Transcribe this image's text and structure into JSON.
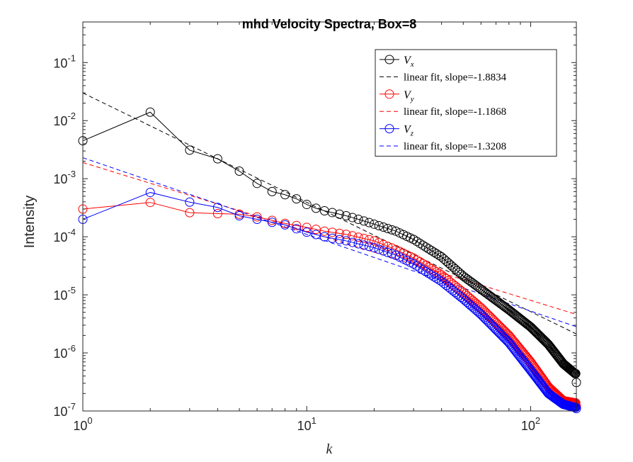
{
  "chart_data": {
    "type": "line",
    "title": "mhd Velocity Spectra, Box=8",
    "xlabel": "k",
    "ylabel": "Intensity",
    "xscale": "log",
    "yscale": "log",
    "xlim": [
      1,
      160
    ],
    "ylim": [
      1e-07,
      0.5
    ],
    "x_ticks": [
      {
        "value": 1,
        "base": "10",
        "exp": "0"
      },
      {
        "value": 10,
        "base": "10",
        "exp": "1"
      },
      {
        "value": 100,
        "base": "10",
        "exp": "2"
      }
    ],
    "y_ticks": [
      {
        "value": 1e-07,
        "base": "10",
        "exp": "-7"
      },
      {
        "value": 1e-06,
        "base": "10",
        "exp": "-6"
      },
      {
        "value": 1e-05,
        "base": "10",
        "exp": "-5"
      },
      {
        "value": 0.0001,
        "base": "10",
        "exp": "-4"
      },
      {
        "value": 0.001,
        "base": "10",
        "exp": "-3"
      },
      {
        "value": 0.01,
        "base": "10",
        "exp": "-2"
      },
      {
        "value": 0.1,
        "base": "10",
        "exp": "-1"
      }
    ],
    "grid": false,
    "legend_position": "top-right",
    "k_max": 160,
    "series": [
      {
        "name": "V_x",
        "legend_base": "V",
        "legend_sub": "x",
        "color": "#000000",
        "marker": "circle",
        "anchors": [
          [
            1,
            0.0045
          ],
          [
            2,
            0.014
          ],
          [
            3,
            0.0031
          ],
          [
            4,
            0.0022
          ],
          [
            5,
            0.00135
          ],
          [
            6,
            0.00083
          ],
          [
            7,
            0.0006
          ],
          [
            8,
            0.00053
          ],
          [
            9,
            0.00045
          ],
          [
            10,
            0.00036
          ],
          [
            11,
            0.00031
          ],
          [
            12,
            0.00028
          ],
          [
            14,
            0.000245
          ],
          [
            15,
            0.00023
          ],
          [
            17,
            0.0002
          ],
          [
            20,
            0.000165
          ],
          [
            25,
            0.000125
          ],
          [
            30,
            9e-05
          ],
          [
            40,
            4.5e-05
          ],
          [
            50,
            2.1e-05
          ],
          [
            60,
            1.25e-05
          ],
          [
            80,
            5.5e-06
          ],
          [
            100,
            2.8e-06
          ],
          [
            120,
            1.4e-06
          ],
          [
            140,
            6.5e-07
          ],
          [
            158,
            4.4e-07
          ]
        ],
        "final": [
          160,
          3.1e-07
        ],
        "fit": {
          "label": "linear fit, slope=-1.8834",
          "k0": 1,
          "y0": 0.03,
          "slope": -1.8834
        }
      },
      {
        "name": "V_y",
        "legend_base": "V",
        "legend_sub": "y",
        "color": "#ff0000",
        "marker": "circle",
        "anchors": [
          [
            1,
            0.0003
          ],
          [
            2,
            0.00039
          ],
          [
            3,
            0.00026
          ],
          [
            4,
            0.00025
          ],
          [
            5,
            0.000245
          ],
          [
            6,
            0.00022
          ],
          [
            8,
            0.00017
          ],
          [
            10,
            0.000145
          ],
          [
            12,
            0.000125
          ],
          [
            15,
            0.00011
          ],
          [
            20,
            8.5e-05
          ],
          [
            25,
            6e-05
          ],
          [
            30,
            4.3e-05
          ],
          [
            40,
            2.2e-05
          ],
          [
            50,
            1.1e-05
          ],
          [
            60,
            6e-06
          ],
          [
            80,
            2e-06
          ],
          [
            100,
            7e-07
          ],
          [
            120,
            2.6e-07
          ],
          [
            140,
            1.5e-07
          ],
          [
            158,
            1.38e-07
          ]
        ],
        "final": [
          160,
          1.2e-07
        ],
        "fit": {
          "label": "linear fit, slope=-1.1868",
          "k0": 1,
          "y0": 0.0019,
          "slope": -1.1868
        }
      },
      {
        "name": "V_z",
        "legend_base": "V",
        "legend_sub": "z",
        "color": "#0000ff",
        "marker": "circle",
        "anchors": [
          [
            1,
            0.0002
          ],
          [
            2,
            0.00058
          ],
          [
            3,
            0.000395
          ],
          [
            4,
            0.00032
          ],
          [
            5,
            0.00023
          ],
          [
            6,
            0.0002
          ],
          [
            8,
            0.00016
          ],
          [
            10,
            0.00012
          ],
          [
            12,
            0.0001
          ],
          [
            15,
            8.5e-05
          ],
          [
            20,
            6.5e-05
          ],
          [
            25,
            4.8e-05
          ],
          [
            30,
            3.4e-05
          ],
          [
            40,
            1.7e-05
          ],
          [
            50,
            8.5e-06
          ],
          [
            60,
            4.6e-06
          ],
          [
            80,
            1.5e-06
          ],
          [
            100,
            5e-07
          ],
          [
            120,
            2e-07
          ],
          [
            140,
            1.3e-07
          ],
          [
            158,
            1.15e-07
          ]
        ],
        "final": [
          160,
          1.1e-07
        ],
        "fit": {
          "label": "linear fit, slope=-1.3208",
          "k0": 1,
          "y0": 0.0023,
          "slope": -1.3208
        }
      }
    ]
  }
}
